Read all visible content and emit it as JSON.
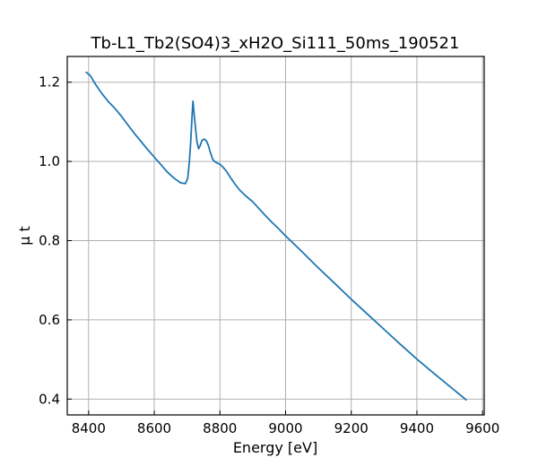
{
  "chart_data": {
    "type": "line",
    "title": "Tb-L1_Tb2(SO4)3_xH2O_Si111_50ms_190521",
    "xlabel": "Energy [eV]",
    "ylabel": "μ t",
    "xlim": [
      8335,
      9605
    ],
    "ylim": [
      0.36,
      1.265
    ],
    "xticks": [
      8400,
      8600,
      8800,
      9000,
      9200,
      9400,
      9600
    ],
    "yticks": [
      0.4,
      0.6,
      0.8,
      1.0,
      1.2
    ],
    "xtick_labels": [
      "8400",
      "8600",
      "8800",
      "9000",
      "9200",
      "9400",
      "9600"
    ],
    "ytick_labels": [
      "0.4",
      "0.6",
      "0.8",
      "1.0",
      "1.2"
    ],
    "grid": true,
    "colors": {
      "series": "#1f77b4"
    },
    "series": [
      {
        "x": [
          8393,
          8405,
          8420,
          8440,
          8460,
          8480,
          8500,
          8520,
          8540,
          8560,
          8580,
          8600,
          8620,
          8640,
          8660,
          8680,
          8695,
          8702,
          8707,
          8711,
          8715,
          8718,
          8721,
          8725,
          8730,
          8735,
          8740,
          8745,
          8750,
          8755,
          8760,
          8765,
          8770,
          8778,
          8785,
          8792,
          8800,
          8810,
          8820,
          8830,
          8845,
          8860,
          8880,
          8900,
          8920,
          8940,
          8960,
          8980,
          9000,
          9050,
          9100,
          9150,
          9200,
          9250,
          9300,
          9350,
          9400,
          9450,
          9500,
          9550
        ],
        "y": [
          1.225,
          1.217,
          1.196,
          1.172,
          1.151,
          1.134,
          1.114,
          1.092,
          1.07,
          1.05,
          1.03,
          1.011,
          0.992,
          0.973,
          0.958,
          0.946,
          0.944,
          0.958,
          1.0,
          1.05,
          1.11,
          1.152,
          1.125,
          1.09,
          1.05,
          1.032,
          1.04,
          1.052,
          1.056,
          1.055,
          1.05,
          1.04,
          1.025,
          1.005,
          0.999,
          0.996,
          0.993,
          0.985,
          0.975,
          0.962,
          0.944,
          0.928,
          0.912,
          0.898,
          0.88,
          0.862,
          0.845,
          0.829,
          0.812,
          0.772,
          0.731,
          0.692,
          0.652,
          0.614,
          0.576,
          0.538,
          0.501,
          0.466,
          0.432,
          0.398
        ]
      }
    ]
  }
}
